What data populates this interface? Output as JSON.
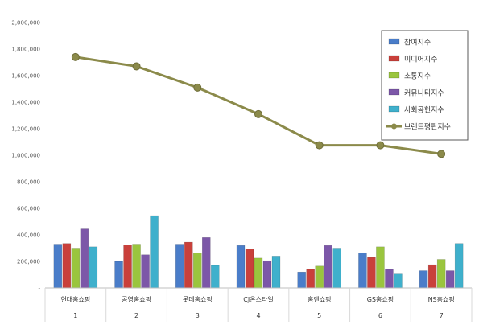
{
  "chart_data": {
    "type": "bar",
    "categories": [
      "현대홈쇼핑",
      "공영홈쇼핑",
      "롯데홈쇼핑",
      "CJ온스타일",
      "홈앤쇼핑",
      "GS홈쇼핑",
      "NS홈쇼핑"
    ],
    "category_numbers": [
      "1",
      "2",
      "3",
      "4",
      "5",
      "6",
      "7"
    ],
    "ylim": [
      0,
      2000000
    ],
    "y_ticks": [
      "-",
      "200,000",
      "400,000",
      "600,000",
      "800,000",
      "1,000,000",
      "1,200,000",
      "1,400,000",
      "1,600,000",
      "1,800,000",
      "2,000,000"
    ],
    "grid": false,
    "legend_position": "top-right",
    "series": [
      {
        "name": "참여지수",
        "kind": "bar",
        "color": "#4a7dc9",
        "values": [
          330000,
          200000,
          330000,
          320000,
          120000,
          265000,
          130000
        ]
      },
      {
        "name": "미디어지수",
        "kind": "bar",
        "color": "#c9403b",
        "values": [
          335000,
          325000,
          345000,
          295000,
          140000,
          230000,
          175000
        ]
      },
      {
        "name": "소통지수",
        "kind": "bar",
        "color": "#9ac53e",
        "values": [
          300000,
          330000,
          265000,
          225000,
          165000,
          310000,
          215000
        ]
      },
      {
        "name": "커뮤니티지수",
        "kind": "bar",
        "color": "#7c57a8",
        "values": [
          445000,
          250000,
          380000,
          205000,
          320000,
          140000,
          130000
        ]
      },
      {
        "name": "사회공헌지수",
        "kind": "bar",
        "color": "#3fb0cc",
        "values": [
          310000,
          545000,
          170000,
          240000,
          300000,
          105000,
          335000
        ]
      },
      {
        "name": "브랜드평판지수",
        "kind": "line",
        "color": "#8b8a4a",
        "values": [
          1740000,
          1670000,
          1510000,
          1310000,
          1075000,
          1075000,
          1010000
        ]
      }
    ]
  }
}
